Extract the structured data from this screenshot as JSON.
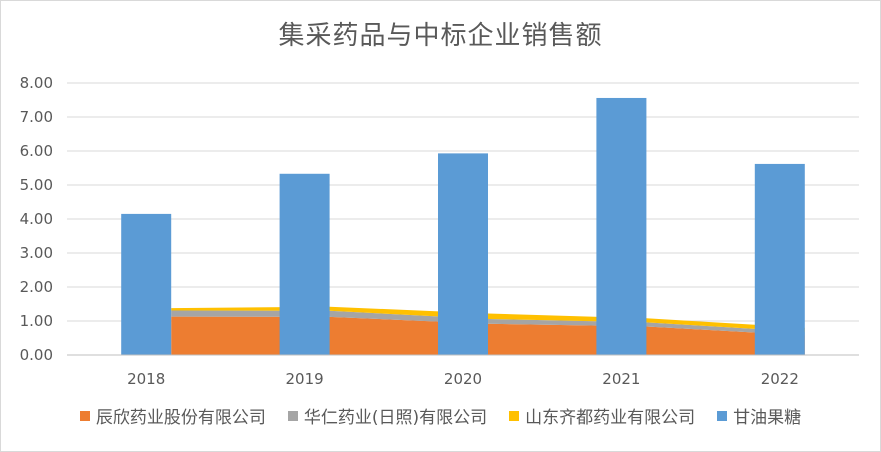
{
  "chart_data": {
    "type": "area+bar",
    "title": "集采药品与中标企业销售额",
    "categories": [
      "2018",
      "2019",
      "2020",
      "2021",
      "2022"
    ],
    "ylim": [
      0,
      8
    ],
    "yticks": [
      "0.00",
      "1.00",
      "2.00",
      "3.00",
      "4.00",
      "5.00",
      "6.00",
      "7.00",
      "8.00"
    ],
    "grid": true,
    "legend_position": "bottom",
    "stacked_area_series": [
      {
        "name": "辰欣药业股份有限公司",
        "color": "#ED7D31",
        "values": [
          1.13,
          1.12,
          0.92,
          0.84,
          0.58
        ]
      },
      {
        "name": "华仁药业(日照)有限公司",
        "color": "#A5A5A5",
        "values": [
          0.18,
          0.18,
          0.14,
          0.12,
          0.1
        ]
      },
      {
        "name": "山东齐都药业有限公司",
        "color": "#FFC000",
        "values": [
          0.07,
          0.12,
          0.16,
          0.12,
          0.12
        ]
      }
    ],
    "bar_series": {
      "name": "甘油果糖",
      "color": "#5B9BD5",
      "values": [
        4.15,
        5.33,
        5.93,
        7.56,
        5.62
      ]
    }
  }
}
